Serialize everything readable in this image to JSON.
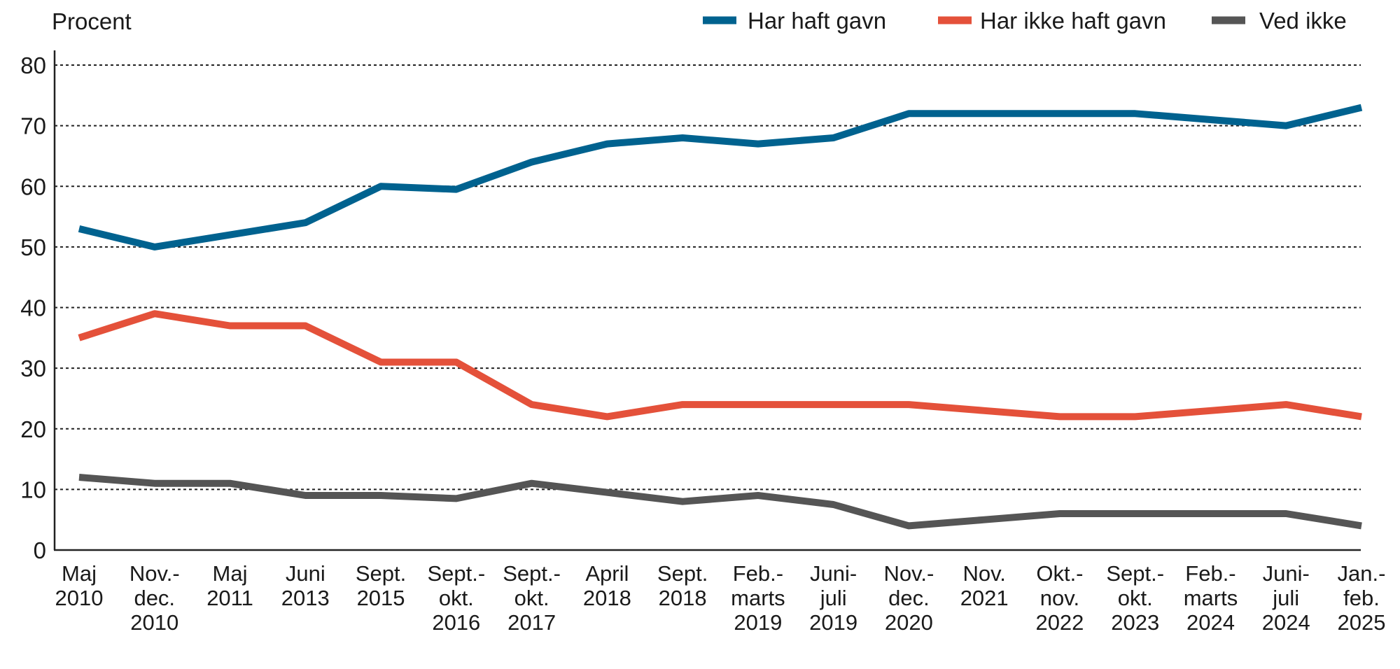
{
  "chart_data": {
    "type": "line",
    "title": "",
    "ylabel": "Procent",
    "xlabel": "",
    "ylim": [
      0,
      80
    ],
    "yticks": [
      0,
      10,
      20,
      30,
      40,
      50,
      60,
      70,
      80
    ],
    "grid": "horizontal dotted",
    "legend_position": "top-right",
    "categories": [
      [
        "Maj",
        "2010"
      ],
      [
        "Nov.-",
        "dec.",
        "2010"
      ],
      [
        "Maj",
        "2011"
      ],
      [
        "Juni",
        "2013"
      ],
      [
        "Sept.",
        "2015"
      ],
      [
        "Sept.-",
        "okt.",
        "2016"
      ],
      [
        "Sept.-",
        "okt.",
        "2017"
      ],
      [
        "April",
        "2018"
      ],
      [
        "Sept.",
        "2018"
      ],
      [
        "Feb.-",
        "marts",
        "2019"
      ],
      [
        "Juni-",
        "juli",
        "2019"
      ],
      [
        "Nov.-",
        "dec.",
        "2020"
      ],
      [
        "Nov.",
        "2021"
      ],
      [
        "Okt.-",
        "nov.",
        "2022"
      ],
      [
        "Sept.-",
        "okt.",
        "2023"
      ],
      [
        "Feb.-",
        "marts",
        "2024"
      ],
      [
        "Juni-",
        "juli",
        "2024"
      ],
      [
        "Jan.-",
        "feb.",
        "2025"
      ]
    ],
    "series": [
      {
        "name": "Har haft gavn",
        "color": "#00628f",
        "values": [
          53,
          50,
          52,
          54,
          60,
          59.5,
          64,
          67,
          68,
          67,
          68,
          72,
          72,
          72,
          72,
          71,
          70,
          73
        ]
      },
      {
        "name": "Har ikke haft gavn",
        "color": "#e4513a",
        "values": [
          35,
          39,
          37,
          37,
          31,
          31,
          24,
          22,
          24,
          24,
          24,
          24,
          23,
          22,
          22,
          23,
          24,
          22
        ]
      },
      {
        "name": "Ved ikke",
        "color": "#555555",
        "values": [
          12,
          11,
          11,
          9,
          9,
          8.5,
          11,
          9.5,
          8,
          9,
          7.5,
          4,
          5,
          6,
          6,
          6,
          6,
          4
        ]
      }
    ]
  }
}
